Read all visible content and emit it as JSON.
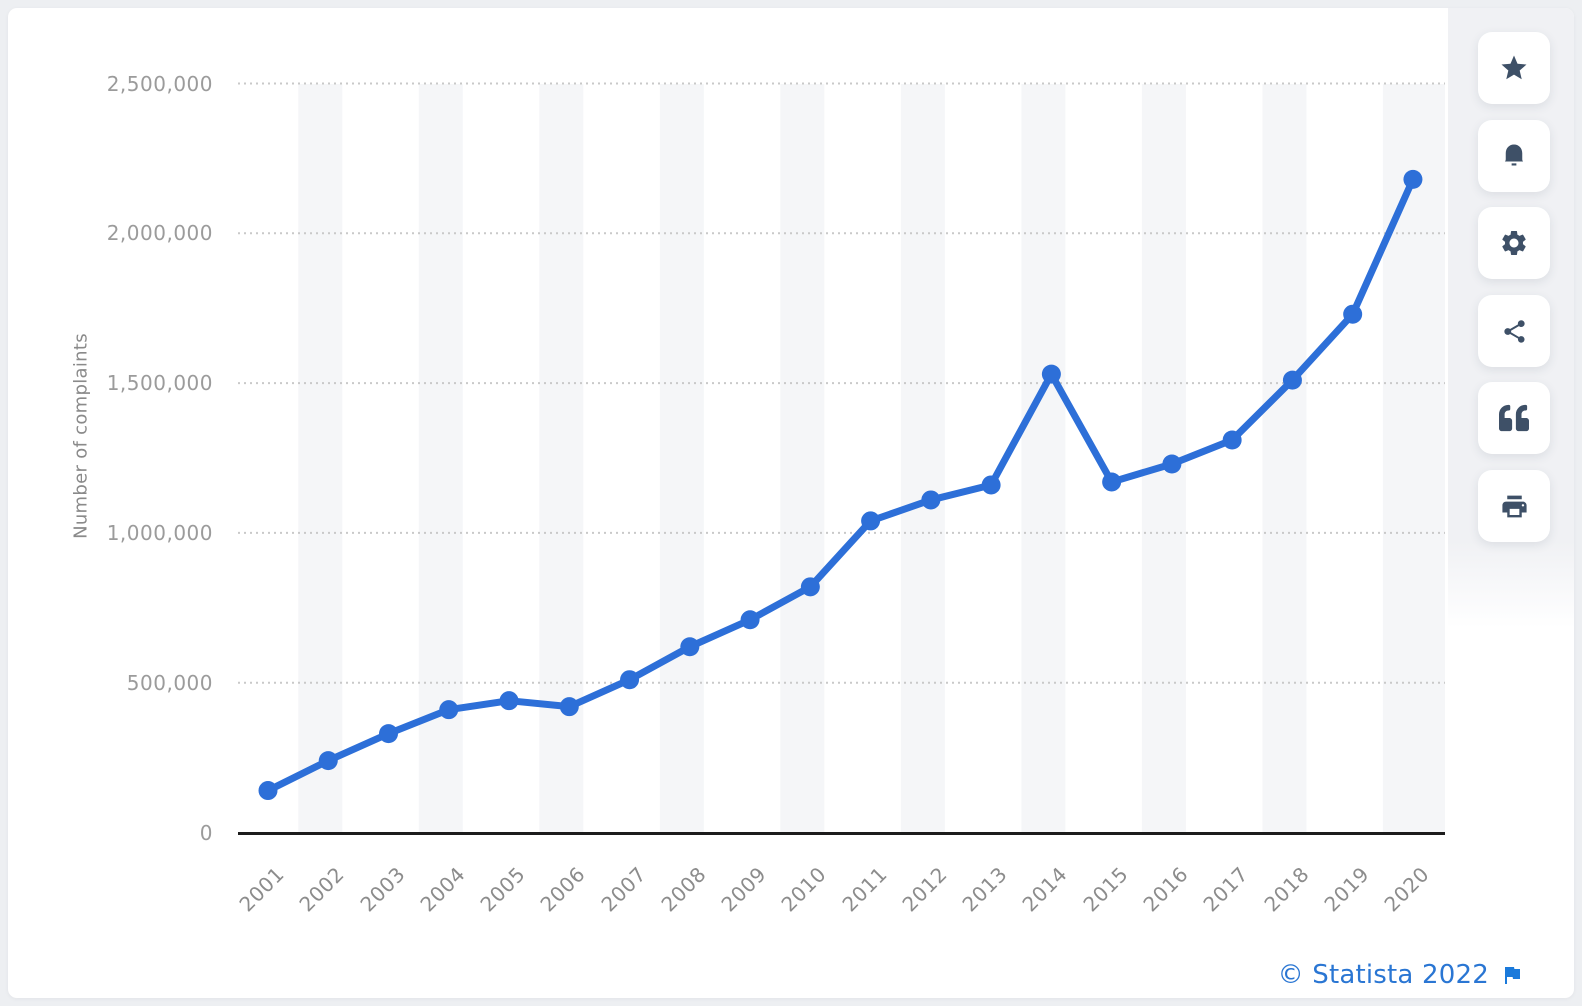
{
  "chart_data": {
    "type": "line",
    "title": "",
    "xlabel": "",
    "ylabel": "Number of complaints",
    "categories": [
      "2001",
      "2002",
      "2003",
      "2004",
      "2005",
      "2006",
      "2007",
      "2008",
      "2009",
      "2010",
      "2011",
      "2012",
      "2013",
      "2014",
      "2015",
      "2016",
      "2017",
      "2018",
      "2019",
      "2020"
    ],
    "series": [
      {
        "name": "Number of complaints",
        "values": [
          140000,
          240000,
          330000,
          410000,
          440000,
          420000,
          510000,
          620000,
          710000,
          820000,
          1040000,
          1110000,
          1160000,
          1530000,
          1170000,
          1230000,
          1310000,
          1510000,
          1730000,
          2180000
        ]
      }
    ],
    "ylim": [
      0,
      2500000
    ],
    "y_ticks": [
      {
        "value": 2500000,
        "label": "2,500,000"
      },
      {
        "value": 2000000,
        "label": "2,000,000"
      },
      {
        "value": 1500000,
        "label": "1,500,000"
      },
      {
        "value": 1000000,
        "label": "1,000,000"
      },
      {
        "value": 500000,
        "label": "500,000"
      },
      {
        "value": 0,
        "label": "0"
      }
    ],
    "grid": "horizontal-dotted",
    "legend": "none",
    "line_color": "#2d6fd8",
    "point_style": "filled-circle",
    "stripe_color": "#f5f6f8"
  },
  "toolbar": {
    "icon_color": "#3e5067",
    "buttons": [
      {
        "name": "favorite-button",
        "icon": "star-icon"
      },
      {
        "name": "alerts-button",
        "icon": "bell-icon"
      },
      {
        "name": "settings-button",
        "icon": "gear-icon"
      },
      {
        "name": "share-button",
        "icon": "share-icon"
      },
      {
        "name": "cite-button",
        "icon": "quote-icon"
      },
      {
        "name": "print-button",
        "icon": "printer-icon"
      }
    ]
  },
  "footer": {
    "copyright": "© Statista 2022",
    "link_color": "#2a76d3",
    "flag_color": "#1b7adb"
  }
}
